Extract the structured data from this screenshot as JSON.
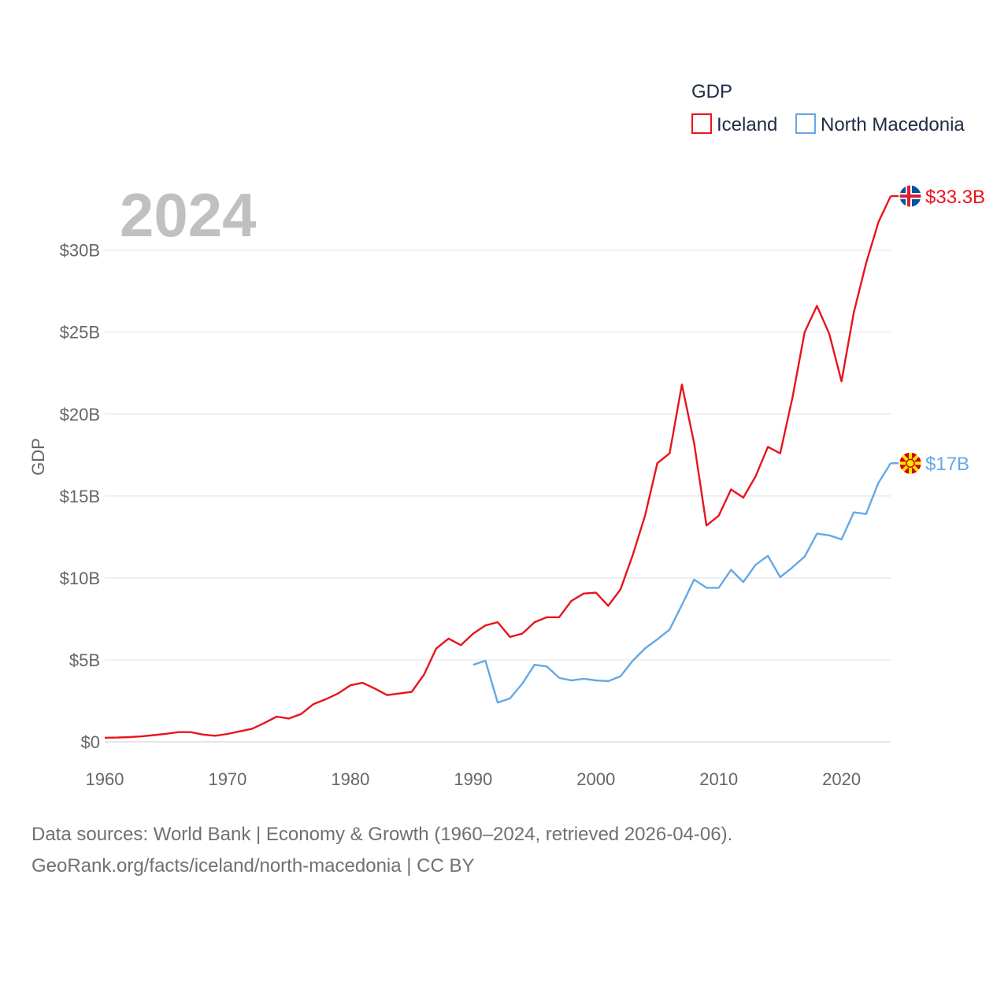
{
  "chart_data": {
    "type": "line",
    "year_label": "2024",
    "ylabel": "GDP",
    "legend": {
      "title": "GDP",
      "position": "top-right"
    },
    "xlim": [
      1960,
      2024
    ],
    "ylim": [
      0,
      33.3
    ],
    "x_ticks": [
      1960,
      1970,
      1980,
      1990,
      2000,
      2010,
      2020
    ],
    "y_ticks": [
      {
        "value": 0,
        "label": "$0"
      },
      {
        "value": 5,
        "label": "$5B"
      },
      {
        "value": 10,
        "label": "$10B"
      },
      {
        "value": 15,
        "label": "$15B"
      },
      {
        "value": 20,
        "label": "$20B"
      },
      {
        "value": 25,
        "label": "$25B"
      },
      {
        "value": 30,
        "label": "$30B"
      }
    ],
    "series": [
      {
        "name": "Iceland",
        "color": "#e8141c",
        "end_label": "$33.3B",
        "flag_icon": "iceland-flag-icon",
        "points": [
          [
            1960,
            0.25
          ],
          [
            1961,
            0.26
          ],
          [
            1962,
            0.29
          ],
          [
            1963,
            0.33
          ],
          [
            1964,
            0.41
          ],
          [
            1965,
            0.49
          ],
          [
            1966,
            0.59
          ],
          [
            1967,
            0.59
          ],
          [
            1968,
            0.44
          ],
          [
            1969,
            0.37
          ],
          [
            1970,
            0.48
          ],
          [
            1971,
            0.64
          ],
          [
            1972,
            0.8
          ],
          [
            1973,
            1.15
          ],
          [
            1974,
            1.54
          ],
          [
            1975,
            1.42
          ],
          [
            1976,
            1.7
          ],
          [
            1977,
            2.3
          ],
          [
            1978,
            2.6
          ],
          [
            1979,
            2.95
          ],
          [
            1980,
            3.45
          ],
          [
            1981,
            3.6
          ],
          [
            1982,
            3.25
          ],
          [
            1983,
            2.85
          ],
          [
            1984,
            2.95
          ],
          [
            1985,
            3.05
          ],
          [
            1986,
            4.1
          ],
          [
            1987,
            5.7
          ],
          [
            1988,
            6.3
          ],
          [
            1989,
            5.9
          ],
          [
            1990,
            6.6
          ],
          [
            1991,
            7.1
          ],
          [
            1992,
            7.3
          ],
          [
            1993,
            6.4
          ],
          [
            1994,
            6.6
          ],
          [
            1995,
            7.3
          ],
          [
            1996,
            7.6
          ],
          [
            1997,
            7.6
          ],
          [
            1998,
            8.6
          ],
          [
            1999,
            9.05
          ],
          [
            2000,
            9.1
          ],
          [
            2001,
            8.3
          ],
          [
            2002,
            9.3
          ],
          [
            2003,
            11.4
          ],
          [
            2004,
            13.8
          ],
          [
            2005,
            17.0
          ],
          [
            2006,
            17.6
          ],
          [
            2007,
            21.8
          ],
          [
            2008,
            18.2
          ],
          [
            2009,
            13.2
          ],
          [
            2010,
            13.8
          ],
          [
            2011,
            15.4
          ],
          [
            2012,
            14.9
          ],
          [
            2013,
            16.2
          ],
          [
            2014,
            18.0
          ],
          [
            2015,
            17.6
          ],
          [
            2016,
            21.0
          ],
          [
            2017,
            25.0
          ],
          [
            2018,
            26.6
          ],
          [
            2019,
            24.9
          ],
          [
            2020,
            22.0
          ],
          [
            2021,
            26.2
          ],
          [
            2022,
            29.2
          ],
          [
            2023,
            31.7
          ],
          [
            2024,
            33.3
          ]
        ]
      },
      {
        "name": "North Macedonia",
        "color": "#64a8e6",
        "end_label": "$17B",
        "flag_icon": "north-macedonia-flag-icon",
        "points": [
          [
            1990,
            4.7
          ],
          [
            1991,
            4.95
          ],
          [
            1992,
            2.4
          ],
          [
            1993,
            2.65
          ],
          [
            1994,
            3.55
          ],
          [
            1995,
            4.7
          ],
          [
            1996,
            4.6
          ],
          [
            1997,
            3.9
          ],
          [
            1998,
            3.75
          ],
          [
            1999,
            3.85
          ],
          [
            2000,
            3.75
          ],
          [
            2001,
            3.7
          ],
          [
            2002,
            4.0
          ],
          [
            2003,
            4.95
          ],
          [
            2004,
            5.7
          ],
          [
            2005,
            6.25
          ],
          [
            2006,
            6.85
          ],
          [
            2007,
            8.35
          ],
          [
            2008,
            9.9
          ],
          [
            2009,
            9.4
          ],
          [
            2010,
            9.4
          ],
          [
            2011,
            10.5
          ],
          [
            2012,
            9.75
          ],
          [
            2013,
            10.8
          ],
          [
            2014,
            11.35
          ],
          [
            2015,
            10.05
          ],
          [
            2016,
            10.65
          ],
          [
            2017,
            11.3
          ],
          [
            2018,
            12.7
          ],
          [
            2019,
            12.6
          ],
          [
            2020,
            12.35
          ],
          [
            2021,
            14.0
          ],
          [
            2022,
            13.9
          ],
          [
            2023,
            15.8
          ],
          [
            2024,
            17.0
          ]
        ]
      }
    ]
  },
  "source": {
    "line1": "Data sources: World Bank | Economy & Growth (1960–2024, retrieved 2026-04-06).",
    "line2": "GeoRank.org/facts/iceland/north-macedonia | CC BY"
  }
}
